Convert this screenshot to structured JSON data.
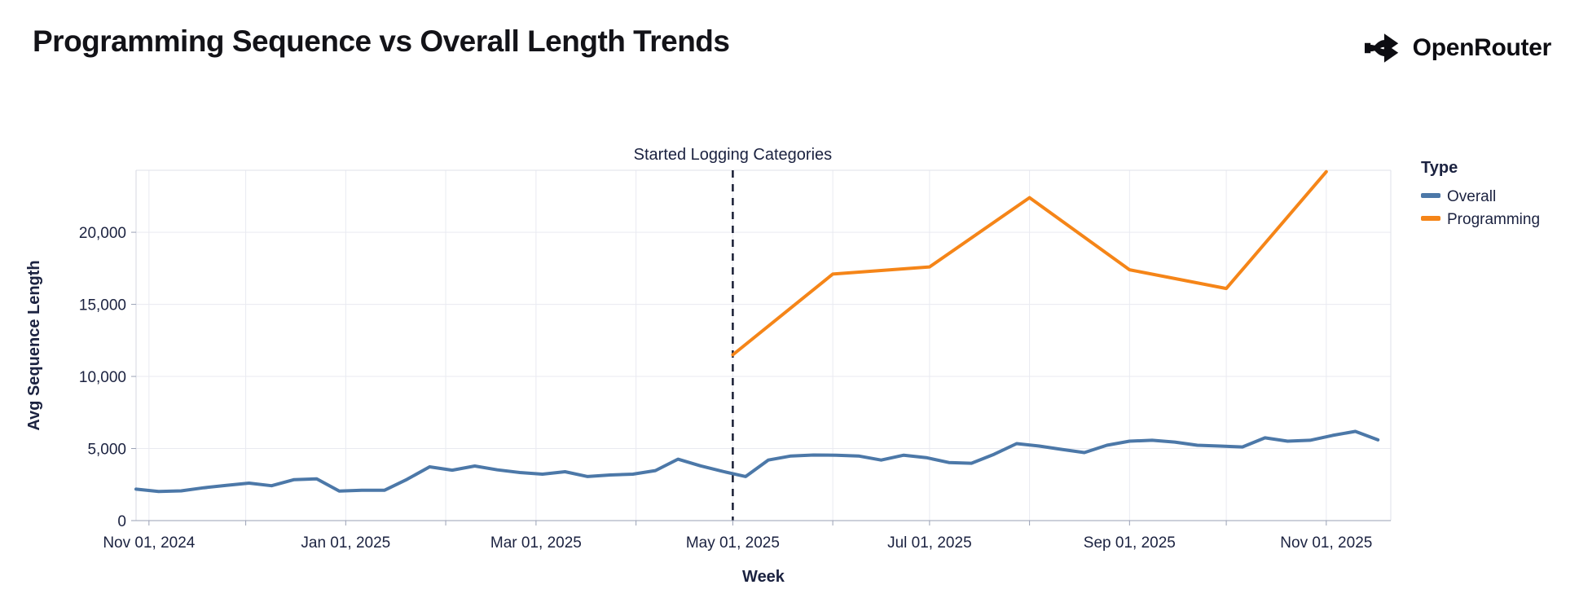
{
  "header": {
    "title": "Programming Sequence vs Overall Length Trends",
    "brand": "OpenRouter"
  },
  "annotation": {
    "label": "Started Logging Categories",
    "date": "2025-05-01"
  },
  "legend": {
    "title": "Type",
    "entries": [
      {
        "label": "Overall",
        "color": "#4c78a8"
      },
      {
        "label": "Programming",
        "color": "#f58518"
      }
    ]
  },
  "axes": {
    "x_title": "Week",
    "y_title": "Avg Sequence Length",
    "x_tick_labels": [
      {
        "date": "2024-11-01",
        "label": "Nov 01, 2024"
      },
      {
        "date": "2025-01-01",
        "label": "Jan 01, 2025"
      },
      {
        "date": "2025-03-01",
        "label": "Mar 01, 2025"
      },
      {
        "date": "2025-05-01",
        "label": "May 01, 2025"
      },
      {
        "date": "2025-07-01",
        "label": "Jul 01, 2025"
      },
      {
        "date": "2025-09-01",
        "label": "Sep 01, 2025"
      },
      {
        "date": "2025-11-01",
        "label": "Nov 01, 2025"
      }
    ],
    "y_tick_labels": [
      {
        "value": 0,
        "label": "0"
      },
      {
        "value": 5000,
        "label": "5,000"
      },
      {
        "value": 10000,
        "label": "10,000"
      },
      {
        "value": 15000,
        "label": "15,000"
      },
      {
        "value": 20000,
        "label": "20,000"
      }
    ]
  },
  "chart_data": {
    "type": "line",
    "title": "Programming Sequence vs Overall Length Trends",
    "xlabel": "Week",
    "ylabel": "Avg Sequence Length",
    "x_domain": [
      "2024-10-28",
      "2025-11-21"
    ],
    "ylim": [
      0,
      24300
    ],
    "grid": true,
    "legend_position": "right",
    "annotation": {
      "label": "Started Logging Categories",
      "date": "2025-05-01",
      "style": "vertical-dashed-rule"
    },
    "series": [
      {
        "name": "Overall",
        "color": "#4c78a8",
        "points": [
          [
            "2024-10-28",
            2180
          ],
          [
            "2024-11-04",
            2020
          ],
          [
            "2024-11-11",
            2060
          ],
          [
            "2024-11-18",
            2280
          ],
          [
            "2024-11-25",
            2440
          ],
          [
            "2024-12-02",
            2600
          ],
          [
            "2024-12-09",
            2420
          ],
          [
            "2024-12-16",
            2840
          ],
          [
            "2024-12-23",
            2900
          ],
          [
            "2024-12-30",
            2050
          ],
          [
            "2025-01-06",
            2100
          ],
          [
            "2025-01-13",
            2100
          ],
          [
            "2025-01-20",
            2860
          ],
          [
            "2025-01-27",
            3730
          ],
          [
            "2025-02-03",
            3500
          ],
          [
            "2025-02-10",
            3785
          ],
          [
            "2025-02-17",
            3520
          ],
          [
            "2025-02-24",
            3335
          ],
          [
            "2025-03-03",
            3220
          ],
          [
            "2025-03-10",
            3390
          ],
          [
            "2025-03-17",
            3055
          ],
          [
            "2025-03-24",
            3165
          ],
          [
            "2025-03-31",
            3220
          ],
          [
            "2025-04-07",
            3470
          ],
          [
            "2025-04-14",
            4260
          ],
          [
            "2025-04-21",
            3800
          ],
          [
            "2025-04-28",
            3410
          ],
          [
            "2025-05-05",
            3060
          ],
          [
            "2025-05-12",
            4200
          ],
          [
            "2025-05-19",
            4480
          ],
          [
            "2025-05-26",
            4550
          ],
          [
            "2025-06-02",
            4540
          ],
          [
            "2025-06-09",
            4480
          ],
          [
            "2025-06-16",
            4200
          ],
          [
            "2025-06-23",
            4540
          ],
          [
            "2025-06-30",
            4370
          ],
          [
            "2025-07-07",
            4030
          ],
          [
            "2025-07-14",
            3980
          ],
          [
            "2025-07-21",
            4600
          ],
          [
            "2025-07-28",
            5340
          ],
          [
            "2025-08-04",
            5170
          ],
          [
            "2025-08-11",
            4940
          ],
          [
            "2025-08-18",
            4720
          ],
          [
            "2025-08-25",
            5230
          ],
          [
            "2025-09-01",
            5510
          ],
          [
            "2025-09-08",
            5570
          ],
          [
            "2025-09-15",
            5450
          ],
          [
            "2025-09-22",
            5230
          ],
          [
            "2025-09-29",
            5170
          ],
          [
            "2025-10-06",
            5110
          ],
          [
            "2025-10-13",
            5740
          ],
          [
            "2025-10-20",
            5510
          ],
          [
            "2025-10-27",
            5570
          ],
          [
            "2025-11-03",
            5910
          ],
          [
            "2025-11-10",
            6190
          ],
          [
            "2025-11-17",
            5600
          ]
        ]
      },
      {
        "name": "Programming",
        "color": "#f58518",
        "points": [
          [
            "2025-05-01",
            11500
          ],
          [
            "2025-06-01",
            17100
          ],
          [
            "2025-07-01",
            17600
          ],
          [
            "2025-08-01",
            22400
          ],
          [
            "2025-09-01",
            17400
          ],
          [
            "2025-10-01",
            16100
          ],
          [
            "2025-11-01",
            24200
          ]
        ]
      }
    ]
  }
}
